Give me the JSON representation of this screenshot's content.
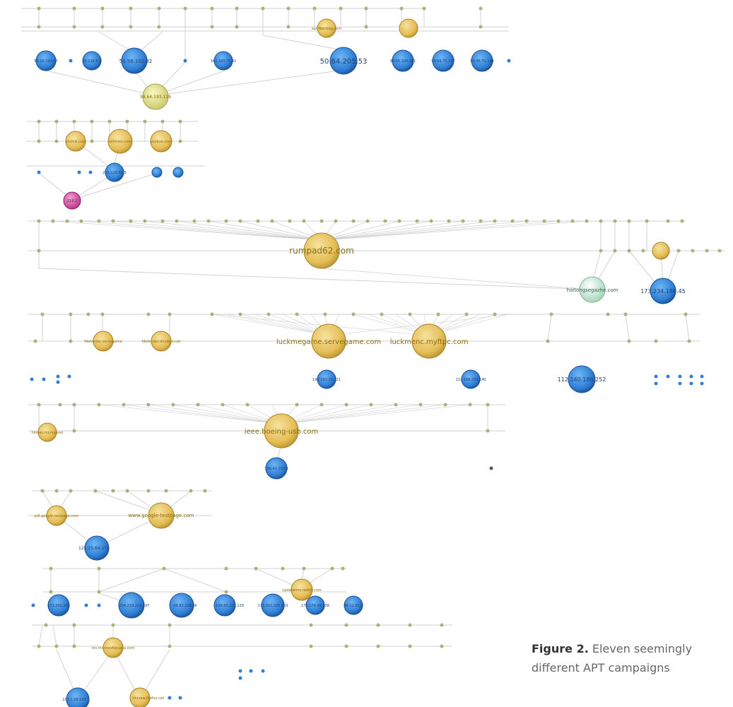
{
  "figure": {
    "caption_label": "Figure 2.",
    "caption_text": "Eleven seemingly different APT campaigns"
  },
  "colors": {
    "domain_node": "#e8c35a",
    "ip_node": "#2f7fd6",
    "small_node": "#a8b27a",
    "pink_node": "#d24ea0",
    "green_node": "#d5eedf",
    "lightyellow_node": "#e6e78a",
    "edge": "#c7c7c7",
    "line": "#d6d6d6"
  },
  "labels": {
    "c1_domain_a": "api.fiberbbg.com",
    "c1_ip_a": "50.18.193.47",
    "c1_ip_b": "50.116.6.8",
    "c1_ip_c": "50.58.102.82",
    "c1_ip_d": "162.243.75.41",
    "c1_ip_e": "50.64.205.53",
    "c1_ip_f": "93.95.100.231",
    "c1_ip_g": "93.93.75.217",
    "c1_ip_h": "93.45.71.164",
    "c1_hub": "58.64.193.119",
    "c2_domain_a": "uhrmsl.com",
    "c2_domain_b": "sefrmes.com",
    "c2_domain_c": "yesbox.com",
    "c2_ip": "201.120.69.5",
    "c2_pink": "218.2",
    "c3_domain": "rumpad62.com",
    "c3_green": "haitongsegazhe.com",
    "c3_ip": "173.234.186.45",
    "c4_domain_a": "luckmegame.servegame.com",
    "c4_domain_b": "luckmenc.myftpc.com",
    "c4_small_a": "fdefender.servegame",
    "c4_small_b": "fdefender.dnsdojo.net",
    "c4_ip_a": "199.192.20.221",
    "c4_ip_b": "112.168.209.140",
    "c4_ip_c": "112.140.186.252",
    "c5_domain": "ieee.boeing-usb.com",
    "c5_small": "hkmac.myrvpanel",
    "c5_ip": "199.41.103.3",
    "c6_domain_a": "pdl.google-testpage.com",
    "c6_domain_b": "www.google-testpage.com",
    "c6_ip": "125.25.64.171",
    "c7_domain": "updaterms.rednlt.com",
    "c7_ip_a": "173.252.205",
    "c7_ip_b": "204.219.202.197",
    "c7_ip_c": "96.93.229.56",
    "c7_ip_d": "199.65.227.139",
    "c7_ip_e": "173.252.225.203",
    "c7_ip_f": "175.178.48.138",
    "c7_ip_g": "84.12.65.6",
    "c8_domain_a": "ms.microsoftpcasia.com",
    "c8_domain_b": "hkcrew.firefox.net",
    "c8_ip": "101.1.16.157"
  }
}
